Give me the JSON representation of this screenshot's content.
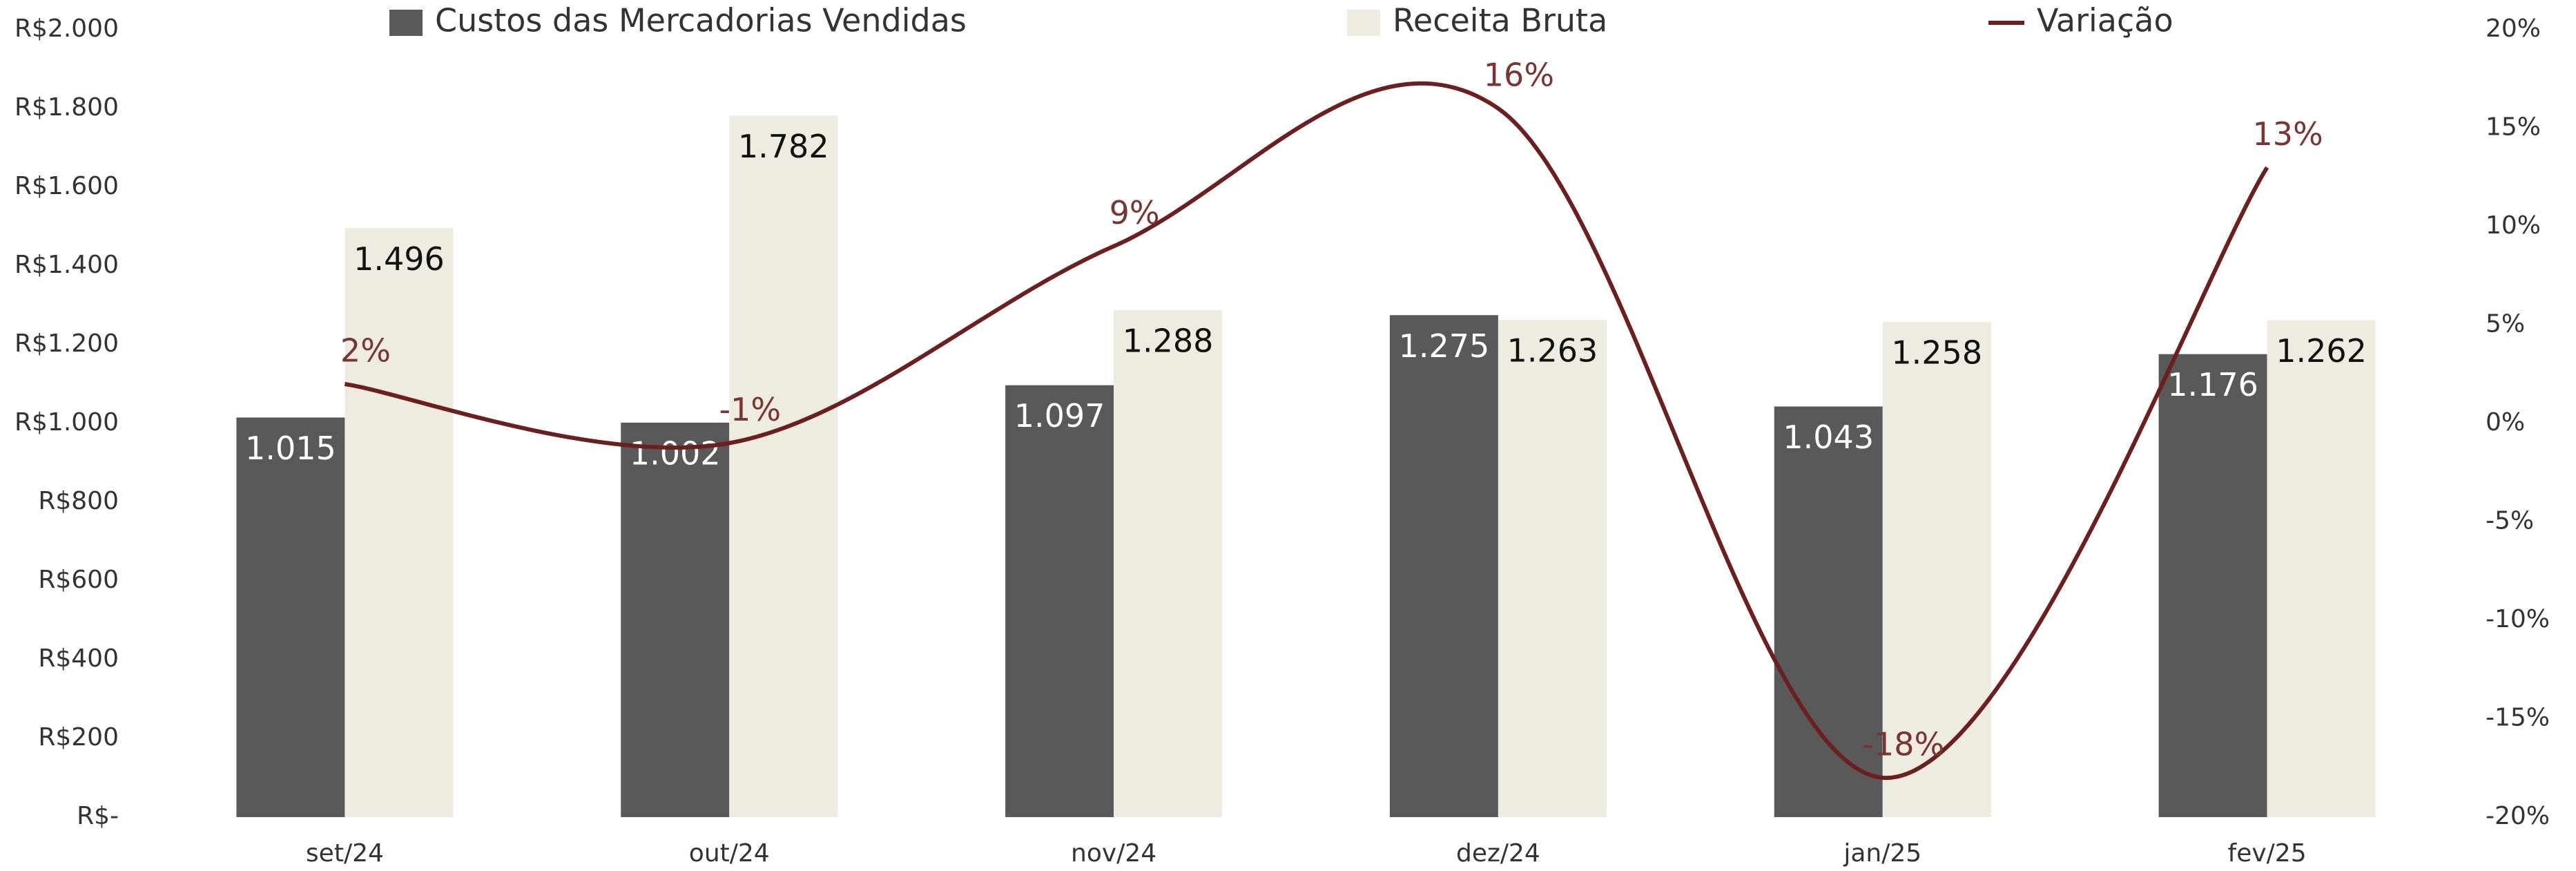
{
  "chart_data": {
    "type": "bar",
    "categories": [
      "set/24",
      "out/24",
      "nov/24",
      "dez/24",
      "jan/25",
      "fev/25"
    ],
    "series": [
      {
        "name": "Custos das Mercadorias Vendidas",
        "color": "#595959",
        "type": "bar",
        "values": [
          1015,
          1002,
          1097,
          1275,
          1043,
          1176
        ],
        "value_labels": [
          "1.015",
          "1.002",
          "1.097",
          "1.275",
          "1.043",
          "1.176"
        ]
      },
      {
        "name": "Receita Bruta",
        "color": "#eeebe0",
        "type": "bar",
        "values": [
          1496,
          1782,
          1288,
          1263,
          1258,
          1262
        ],
        "value_labels": [
          "1.496",
          "1.782",
          "1.288",
          "1.263",
          "1.258",
          "1.262"
        ]
      },
      {
        "name": "Variação",
        "color": "#6b1f1f",
        "type": "line",
        "axis": "y2",
        "values": [
          2,
          -1,
          9,
          16,
          -18,
          13
        ],
        "value_labels": [
          "2%",
          "-1%",
          "9%",
          "16%",
          "-18%",
          "13%"
        ]
      }
    ],
    "ylim": [
      0,
      2000
    ],
    "yticks": [
      {
        "value": 0,
        "label": "R$-"
      },
      {
        "value": 200,
        "label": "R$200"
      },
      {
        "value": 400,
        "label": "R$400"
      },
      {
        "value": 600,
        "label": "R$600"
      },
      {
        "value": 800,
        "label": "R$800"
      },
      {
        "value": 1000,
        "label": "R$1.000"
      },
      {
        "value": 1200,
        "label": "R$1.200"
      },
      {
        "value": 1400,
        "label": "R$1.400"
      },
      {
        "value": 1600,
        "label": "R$1.600"
      },
      {
        "value": 1800,
        "label": "R$1.800"
      },
      {
        "value": 2000,
        "label": "R$2.000"
      }
    ],
    "y2lim": [
      -20,
      20
    ],
    "y2ticks": [
      {
        "value": -20,
        "label": "-20%"
      },
      {
        "value": -15,
        "label": "-15%"
      },
      {
        "value": -10,
        "label": "-10%"
      },
      {
        "value": -5,
        "label": "-5%"
      },
      {
        "value": 0,
        "label": "0%"
      },
      {
        "value": 5,
        "label": "5%"
      },
      {
        "value": 10,
        "label": "10%"
      },
      {
        "value": 15,
        "label": "15%"
      },
      {
        "value": 20,
        "label": "20%"
      }
    ],
    "legend": "top",
    "grid": false
  }
}
